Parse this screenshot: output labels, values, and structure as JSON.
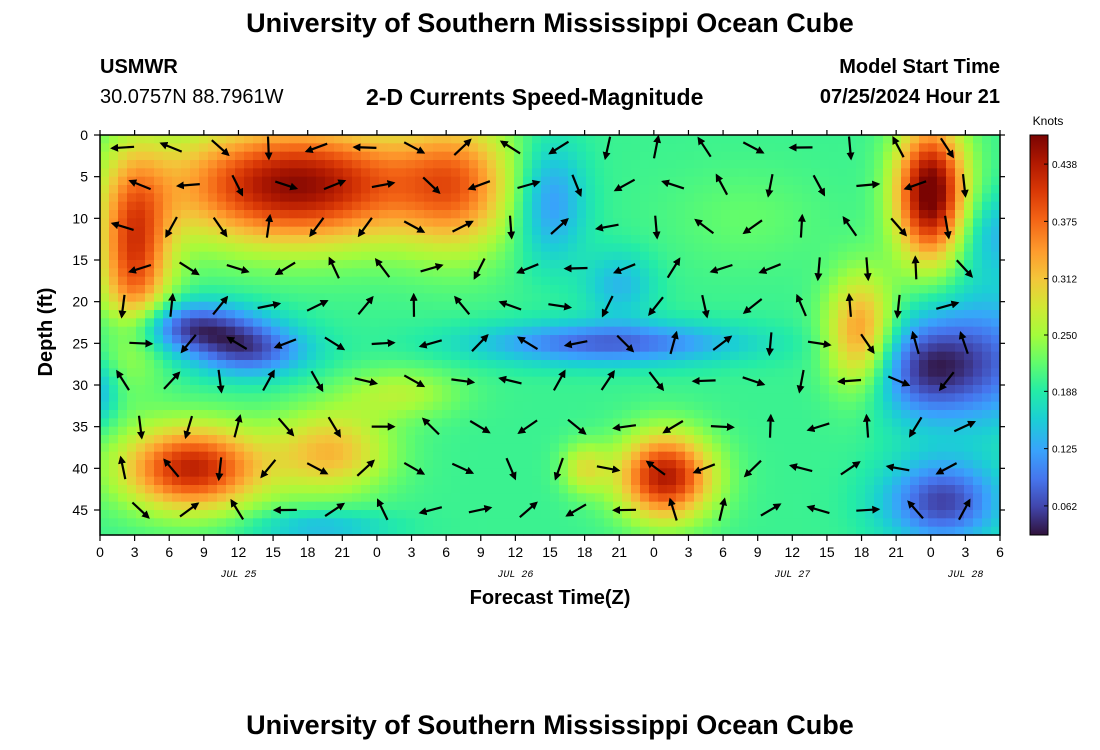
{
  "header": {
    "title": "University of Southern Mississippi Ocean Cube",
    "station": "USMWR",
    "coords": "30.0757N  88.7961W",
    "plot_title": "2-D Currents Speed-Magnitude",
    "start_label": "Model Start Time",
    "start_value": "07/25/2024 Hour 21"
  },
  "footer": {
    "title": "University of Southern Mississippi Ocean Cube"
  },
  "chart_data": {
    "type": "heatmap",
    "title": "2-D Currents Speed-Magnitude",
    "xlabel": "Forecast Time(Z)",
    "ylabel": "Depth (ft)",
    "x_tick_labels": [
      "0",
      "3",
      "6",
      "9",
      "12",
      "15",
      "18",
      "21",
      "0",
      "3",
      "6",
      "9",
      "12",
      "15",
      "18",
      "21",
      "0",
      "3",
      "6",
      "9",
      "12",
      "15",
      "18",
      "21",
      "0",
      "3",
      "6"
    ],
    "x_range": [
      0,
      78
    ],
    "date_labels": [
      {
        "label": "JUL 25",
        "x": 12
      },
      {
        "label": "JUL 26",
        "x": 36
      },
      {
        "label": "JUL 27",
        "x": 60
      },
      {
        "label": "JUL 28",
        "x": 75
      }
    ],
    "y_ticks": [
      0,
      5,
      10,
      15,
      20,
      25,
      30,
      35,
      40,
      45
    ],
    "y_range": [
      0,
      48
    ],
    "colorbar": {
      "title": "Knots",
      "ticks": [
        0.062,
        0.125,
        0.188,
        0.25,
        0.312,
        0.375,
        0.438
      ],
      "range": [
        0.03,
        0.47
      ]
    },
    "speed_blobs": [
      {
        "x": 3,
        "y": 14,
        "sx": 3,
        "sy": 11,
        "v": 0.2
      },
      {
        "x": 17,
        "y": 6,
        "sx": 11,
        "sy": 7,
        "v": 0.26
      },
      {
        "x": 31,
        "y": 6,
        "sx": 5,
        "sy": 8,
        "v": 0.14
      },
      {
        "x": 8,
        "y": 23,
        "sx": 6,
        "sy": 3,
        "v": -0.14
      },
      {
        "x": 13,
        "y": 26,
        "sx": 5,
        "sy": 3,
        "v": -0.12
      },
      {
        "x": 8,
        "y": 40,
        "sx": 6,
        "sy": 5,
        "v": 0.23
      },
      {
        "x": 20,
        "y": 38,
        "sx": 5,
        "sy": 5,
        "v": 0.12
      },
      {
        "x": 39,
        "y": 8,
        "sx": 3,
        "sy": 7,
        "v": -0.09
      },
      {
        "x": 44,
        "y": 25,
        "sx": 11,
        "sy": 2.5,
        "v": -0.12
      },
      {
        "x": 45,
        "y": 18,
        "sx": 3,
        "sy": 4,
        "v": -0.06
      },
      {
        "x": 49,
        "y": 41,
        "sx": 4,
        "sy": 5,
        "v": 0.24
      },
      {
        "x": 42,
        "y": 40,
        "sx": 2,
        "sy": 3,
        "v": 0.08
      },
      {
        "x": 56,
        "y": 10,
        "sx": 7,
        "sy": 6,
        "v": 0.02
      },
      {
        "x": 66,
        "y": 24,
        "sx": 3,
        "sy": 7,
        "v": 0.16
      },
      {
        "x": 78,
        "y": 12,
        "sx": 4,
        "sy": 5,
        "v": -0.06
      },
      {
        "x": 71,
        "y": 28,
        "sx": 5,
        "sy": 6,
        "v": -0.12
      },
      {
        "x": 77,
        "y": 27,
        "sx": 6,
        "sy": 8,
        "v": -0.1
      },
      {
        "x": 73,
        "y": 44,
        "sx": 5,
        "sy": 5,
        "v": -0.14
      },
      {
        "x": 72,
        "y": 7,
        "sx": 3,
        "sy": 8,
        "v": 0.29
      },
      {
        "x": 0,
        "y": 31,
        "sx": 1.5,
        "sy": 4,
        "v": -0.06
      },
      {
        "x": 19,
        "y": 47,
        "sx": 6,
        "sy": 2,
        "v": -0.06
      },
      {
        "x": 26,
        "y": 31,
        "sx": 5,
        "sy": 3,
        "v": 0.06
      }
    ]
  }
}
